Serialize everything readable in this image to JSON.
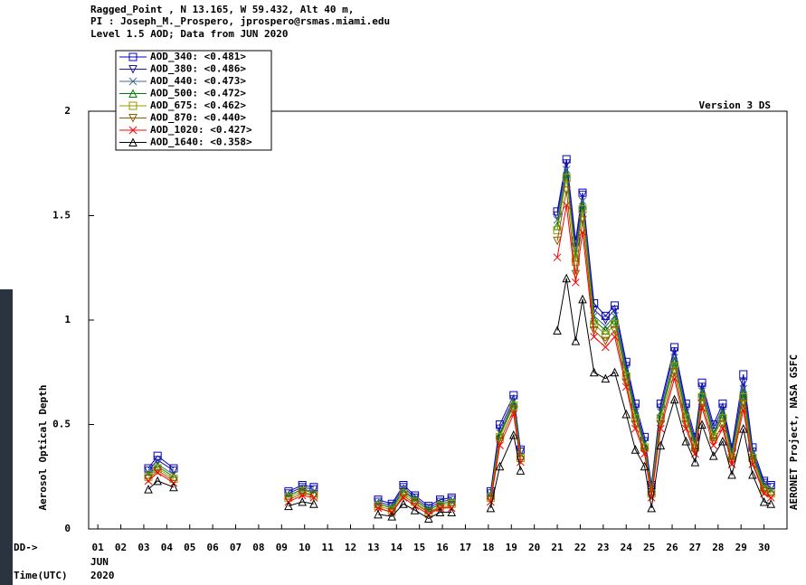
{
  "chart_data": {
    "type": "line",
    "title_lines": [
      "Ragged_Point , N 13.165, W  59.432, Alt 40 m,",
      "PI : Joseph_M._Prospero, jprospero@rsmas.miami.edu",
      "Level 1.5 AOD; Data from JUN 2020"
    ],
    "version": "Version 3 DS",
    "credit": "AERONET Project, NASA GSFC",
    "ylabel": "Aerosol Optical Depth",
    "xlabel_day": "DD->",
    "xlabel": "Time(UTC)",
    "month": "JUN",
    "year": "2020",
    "legend": "top-left",
    "grid": false,
    "xlim": [
      0.6,
      31.0
    ],
    "xticks": [
      {
        "value": 1,
        "label": "01"
      },
      {
        "value": 2,
        "label": "02"
      },
      {
        "value": 3,
        "label": "03"
      },
      {
        "value": 4,
        "label": "04"
      },
      {
        "value": 5,
        "label": "05"
      },
      {
        "value": 6,
        "label": "06"
      },
      {
        "value": 7,
        "label": "07"
      },
      {
        "value": 8,
        "label": "08"
      },
      {
        "value": 9,
        "label": "09"
      },
      10,
      11,
      12,
      13,
      14,
      15,
      16,
      17,
      18,
      19,
      20,
      21,
      22,
      23,
      24,
      25,
      26,
      27,
      28,
      29,
      30
    ],
    "ylim": [
      0,
      2
    ],
    "yticks": [
      0,
      0.5,
      1,
      1.5,
      2
    ],
    "x": [
      3.2,
      3.6,
      4.3,
      5.0,
      9.3,
      9.9,
      10.4,
      11.0,
      13.2,
      13.8,
      14.3,
      14.8,
      15.4,
      15.9,
      16.4,
      17.0,
      18.1,
      18.5,
      19.1,
      19.4,
      20.0,
      21.0,
      21.4,
      21.8,
      22.1,
      22.6,
      23.1,
      23.5,
      24.0,
      24.4,
      24.8,
      25.1,
      25.5,
      26.1,
      26.6,
      27.0,
      27.3,
      27.8,
      28.2,
      28.6,
      29.1,
      29.5,
      30.0,
      30.3
    ],
    "series": [
      {
        "name": "AOD_340: <0.481>",
        "color": "#0000cc",
        "marker": "square",
        "values": [
          0.29,
          0.35,
          0.29,
          null,
          0.18,
          0.21,
          0.2,
          null,
          0.14,
          0.12,
          0.21,
          0.16,
          0.11,
          0.14,
          0.15,
          null,
          0.18,
          0.5,
          0.64,
          0.38,
          null,
          1.52,
          1.77,
          1.38,
          1.61,
          1.08,
          1.02,
          1.07,
          0.8,
          0.6,
          0.44,
          0.21,
          0.6,
          0.87,
          0.6,
          0.44,
          0.7,
          0.5,
          0.6,
          0.39,
          0.74,
          0.39,
          0.23,
          0.21
        ]
      },
      {
        "name": "AOD_380: <0.486>",
        "color": "#1a1a99",
        "marker": "tri-down",
        "values": [
          0.28,
          0.33,
          0.28,
          null,
          0.17,
          0.2,
          0.19,
          null,
          0.13,
          0.11,
          0.2,
          0.15,
          0.1,
          0.13,
          0.14,
          null,
          0.17,
          0.48,
          0.62,
          0.37,
          null,
          1.5,
          1.75,
          1.35,
          1.6,
          1.05,
          1.0,
          1.05,
          0.78,
          0.58,
          0.42,
          0.2,
          0.58,
          0.85,
          0.58,
          0.42,
          0.68,
          0.48,
          0.58,
          0.37,
          0.7,
          0.37,
          0.22,
          0.2
        ]
      },
      {
        "name": "AOD_440: <0.473>",
        "color": "#4a6a8c",
        "marker": "x",
        "values": [
          0.27,
          0.31,
          0.26,
          null,
          0.16,
          0.19,
          0.18,
          null,
          0.12,
          0.1,
          0.19,
          0.14,
          0.09,
          0.12,
          0.13,
          null,
          0.16,
          0.46,
          0.61,
          0.36,
          null,
          1.48,
          1.72,
          1.32,
          1.57,
          1.02,
          0.97,
          1.02,
          0.76,
          0.56,
          0.41,
          0.19,
          0.56,
          0.82,
          0.56,
          0.41,
          0.66,
          0.46,
          0.56,
          0.36,
          0.67,
          0.36,
          0.21,
          0.19
        ]
      },
      {
        "name": "AOD_500: <0.472>",
        "color": "#008000",
        "marker": "tri-up",
        "values": [
          0.26,
          0.3,
          0.25,
          null,
          0.16,
          0.19,
          0.17,
          null,
          0.12,
          0.1,
          0.18,
          0.14,
          0.09,
          0.12,
          0.13,
          null,
          0.16,
          0.45,
          0.6,
          0.35,
          null,
          1.45,
          1.7,
          1.3,
          1.55,
          1.0,
          0.95,
          1.0,
          0.75,
          0.55,
          0.4,
          0.18,
          0.55,
          0.8,
          0.55,
          0.4,
          0.65,
          0.45,
          0.55,
          0.35,
          0.65,
          0.35,
          0.2,
          0.18
        ]
      },
      {
        "name": "AOD_675: <0.462>",
        "color": "#999900",
        "marker": "square",
        "values": [
          0.25,
          0.29,
          0.24,
          null,
          0.15,
          0.18,
          0.16,
          null,
          0.11,
          0.09,
          0.17,
          0.13,
          0.08,
          0.11,
          0.12,
          null,
          0.15,
          0.44,
          0.59,
          0.34,
          null,
          1.43,
          1.68,
          1.28,
          1.53,
          0.98,
          0.93,
          0.98,
          0.73,
          0.53,
          0.39,
          0.17,
          0.53,
          0.78,
          0.53,
          0.39,
          0.63,
          0.44,
          0.53,
          0.34,
          0.63,
          0.34,
          0.19,
          0.17
        ]
      },
      {
        "name": "AOD_870: <0.440>",
        "color": "#8b5a00",
        "marker": "tri-down",
        "values": [
          0.24,
          0.28,
          0.23,
          null,
          0.14,
          0.17,
          0.16,
          null,
          0.1,
          0.08,
          0.16,
          0.12,
          0.08,
          0.1,
          0.11,
          null,
          0.14,
          0.42,
          0.57,
          0.33,
          null,
          1.38,
          1.62,
          1.22,
          1.48,
          0.95,
          0.9,
          0.95,
          0.7,
          0.5,
          0.37,
          0.16,
          0.5,
          0.75,
          0.5,
          0.37,
          0.6,
          0.42,
          0.5,
          0.32,
          0.6,
          0.32,
          0.18,
          0.16
        ]
      },
      {
        "name": "AOD_1020: <0.427>",
        "color": "#ff0000",
        "marker": "x",
        "values": [
          0.23,
          0.27,
          0.22,
          null,
          0.13,
          0.16,
          0.15,
          null,
          0.1,
          0.08,
          0.15,
          0.11,
          0.07,
          0.1,
          0.1,
          null,
          0.13,
          0.4,
          0.55,
          0.32,
          null,
          1.3,
          1.55,
          1.18,
          1.42,
          0.92,
          0.87,
          0.92,
          0.68,
          0.48,
          0.36,
          0.15,
          0.48,
          0.72,
          0.48,
          0.36,
          0.58,
          0.4,
          0.48,
          0.31,
          0.57,
          0.31,
          0.17,
          0.15
        ]
      },
      {
        "name": "AOD_1640: <0.358>",
        "color": "#000000",
        "marker": "tri-up",
        "values": [
          0.19,
          0.23,
          0.2,
          null,
          0.11,
          0.13,
          0.12,
          null,
          0.07,
          0.06,
          0.12,
          0.09,
          0.05,
          0.08,
          0.08,
          null,
          0.1,
          0.3,
          0.45,
          0.28,
          null,
          0.95,
          1.2,
          0.9,
          1.1,
          0.75,
          0.72,
          0.75,
          0.55,
          0.38,
          0.3,
          0.1,
          0.4,
          0.62,
          0.42,
          0.32,
          0.5,
          0.35,
          0.42,
          0.26,
          0.48,
          0.26,
          0.13,
          0.12
        ]
      }
    ]
  }
}
